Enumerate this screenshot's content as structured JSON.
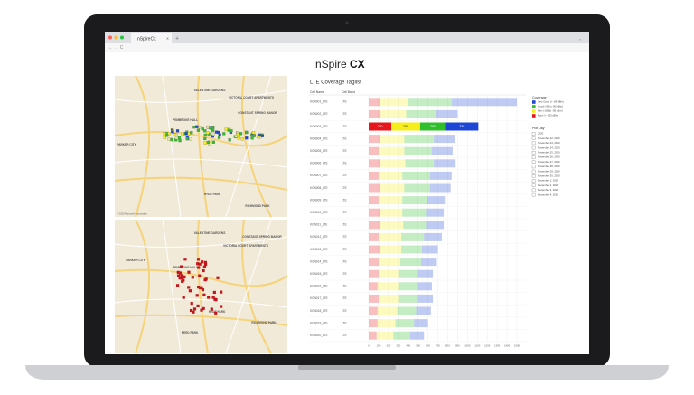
{
  "browser": {
    "tab": "nSpireCx"
  },
  "header": {
    "logo_left": "nSpire",
    "logo_right": "CX"
  },
  "maps": [
    {
      "labels": [
        "VALENTINE GARDENS",
        "VICTORIA COURT APARTMENTS",
        "PARKER CITY",
        "PEMBROKE HALL",
        "HYDE PARK",
        "RICHMOND PARK",
        "CONSTANT SPRING MANOR"
      ],
      "credit": "© 2020 Microsoft Corporation"
    },
    {
      "labels": [
        "VALENTINE GARDENS",
        "CONSTANT SPRING MANOR",
        "VICTORIA COURT APARTMENTS",
        "PARKER CITY",
        "PEMBROKE HALL",
        "HYDE PARK",
        "RICHMOND PARK",
        "REED PARK"
      ]
    }
  ],
  "taglist": {
    "title": "LTE Coverage Taglist",
    "headers": [
      "Cell Name",
      "Cell Band"
    ],
    "bands": [
      "LTE",
      "LTE",
      "LTE",
      "LTE",
      "LTE",
      "LTE",
      "LTE",
      "LTE",
      "LTE",
      "LTE",
      "LTE",
      "LTE",
      "LTE",
      "LTE",
      "LTE",
      "LTE",
      "LTE",
      "LTE",
      "LTE",
      "LTE"
    ]
  },
  "chart_data": {
    "type": "bar",
    "orientation": "horizontal",
    "stacked": true,
    "categories": [
      "KGN001_LTE",
      "KGN002_LTE",
      "KGN003_LTE",
      "KGN004_LTE",
      "KGN005_LTE",
      "KGN006_LTE",
      "KGN007_LTE",
      "KGN008_LTE",
      "KGN009_LTE",
      "KGN010_LTE",
      "KGN011_LTE",
      "KGN012_LTE",
      "KGN013_LTE",
      "KGN014_LTE",
      "KGN015_LTE",
      "KGN016_LTE",
      "KGN017_LTE",
      "KGN018_LTE",
      "KGN019_LTE",
      "KGN020_LTE"
    ],
    "legend_title": "Coverage",
    "series": [
      {
        "name": "Poor (< -105 dBm)",
        "color": "#e8141c",
        "values": [
          110,
          120,
          230,
          110,
          100,
          120,
          100,
          110,
          100,
          120,
          110,
          100,
          110,
          100,
          100,
          90,
          100,
          90,
          90,
          80
        ]
      },
      {
        "name": "Fair (-105 to -95 dBm)",
        "color": "#f6ee1a",
        "values": [
          290,
          260,
          290,
          250,
          260,
          250,
          240,
          250,
          240,
          220,
          240,
          230,
          220,
          220,
          200,
          210,
          200,
          200,
          180,
          170
        ]
      },
      {
        "name": "Good (-95 to -85 dBm)",
        "color": "#2fbf2a",
        "values": [
          440,
          300,
          260,
          300,
          280,
          290,
          280,
          260,
          250,
          240,
          230,
          230,
          210,
          210,
          200,
          200,
          200,
          190,
          190,
          170
        ]
      },
      {
        "name": "Very Good (> -85 dBm)",
        "color": "#1d46d6",
        "values": [
          660,
          220,
          330,
          210,
          210,
          220,
          220,
          210,
          190,
          180,
          180,
          180,
          160,
          160,
          150,
          140,
          150,
          150,
          140,
          140
        ]
      }
    ],
    "xlim": [
      0,
      1500
    ],
    "xticks": [
      0,
      100,
      200,
      300,
      400,
      500,
      600,
      700,
      800,
      900,
      1000,
      1100,
      1200,
      1300,
      1400,
      1500
    ],
    "grid": true
  },
  "plot_day": {
    "title": "Plot Day",
    "days": [
      "2020",
      "November 22, 2020",
      "November 23, 2020",
      "November 24, 2020",
      "November 25, 2020",
      "November 26, 2020",
      "November 27, 2020",
      "November 28, 2020",
      "November 29, 2020",
      "November 30, 2020",
      "December 1, 2020",
      "December 2, 2020",
      "December 3, 2020",
      "December 4, 2020"
    ]
  }
}
